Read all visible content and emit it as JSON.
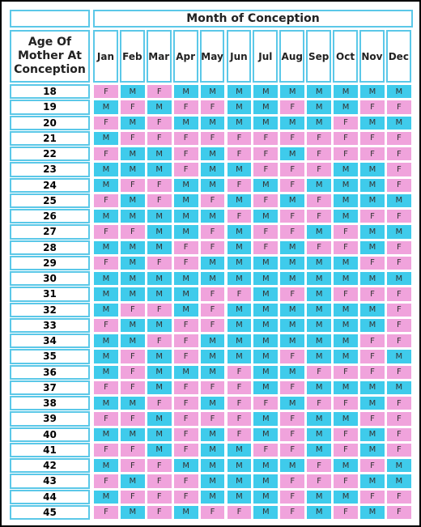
{
  "header": {
    "title": "Month of Conception",
    "age_label": "Age Of Mother At Conception"
  },
  "months": [
    "Jan",
    "Feb",
    "Mar",
    "Apr",
    "May",
    "Jun",
    "Jul",
    "Aug",
    "Sep",
    "Oct",
    "Nov",
    "Dec"
  ],
  "rows": [
    {
      "age": "18",
      "values": [
        "F",
        "M",
        "F",
        "M",
        "M",
        "M",
        "M",
        "M",
        "M",
        "M",
        "M",
        "M"
      ]
    },
    {
      "age": "19",
      "values": [
        "M",
        "F",
        "M",
        "F",
        "F",
        "M",
        "M",
        "F",
        "M",
        "M",
        "F",
        "F"
      ]
    },
    {
      "age": "20",
      "values": [
        "F",
        "M",
        "F",
        "M",
        "M",
        "M",
        "M",
        "M",
        "M",
        "F",
        "M",
        "M"
      ]
    },
    {
      "age": "21",
      "values": [
        "M",
        "F",
        "F",
        "F",
        "F",
        "F",
        "F",
        "F",
        "F",
        "F",
        "F",
        "F"
      ]
    },
    {
      "age": "22",
      "values": [
        "F",
        "M",
        "M",
        "F",
        "M",
        "F",
        "F",
        "M",
        "F",
        "F",
        "F",
        "F"
      ]
    },
    {
      "age": "23",
      "values": [
        "M",
        "M",
        "M",
        "F",
        "M",
        "M",
        "F",
        "F",
        "F",
        "M",
        "M",
        "F"
      ]
    },
    {
      "age": "24",
      "values": [
        "M",
        "F",
        "F",
        "M",
        "M",
        "F",
        "M",
        "F",
        "M",
        "M",
        "M",
        "F"
      ]
    },
    {
      "age": "25",
      "values": [
        "F",
        "M",
        "F",
        "M",
        "F",
        "M",
        "F",
        "M",
        "F",
        "M",
        "M",
        "M"
      ]
    },
    {
      "age": "26",
      "values": [
        "M",
        "M",
        "M",
        "M",
        "M",
        "F",
        "M",
        "F",
        "F",
        "M",
        "F",
        "F"
      ]
    },
    {
      "age": "27",
      "values": [
        "F",
        "F",
        "M",
        "M",
        "F",
        "M",
        "F",
        "F",
        "M",
        "F",
        "M",
        "M"
      ]
    },
    {
      "age": "28",
      "values": [
        "M",
        "M",
        "M",
        "F",
        "F",
        "M",
        "F",
        "M",
        "F",
        "F",
        "M",
        "F"
      ]
    },
    {
      "age": "29",
      "values": [
        "F",
        "M",
        "F",
        "F",
        "M",
        "M",
        "M",
        "M",
        "M",
        "M",
        "F",
        "F"
      ]
    },
    {
      "age": "30",
      "values": [
        "M",
        "M",
        "M",
        "M",
        "M",
        "M",
        "M",
        "M",
        "M",
        "M",
        "M",
        "M"
      ]
    },
    {
      "age": "31",
      "values": [
        "M",
        "M",
        "M",
        "M",
        "F",
        "F",
        "M",
        "F",
        "M",
        "F",
        "F",
        "F"
      ]
    },
    {
      "age": "32",
      "values": [
        "M",
        "F",
        "F",
        "M",
        "F",
        "M",
        "M",
        "M",
        "M",
        "M",
        "M",
        "F"
      ]
    },
    {
      "age": "33",
      "values": [
        "F",
        "M",
        "M",
        "F",
        "F",
        "M",
        "M",
        "M",
        "M",
        "M",
        "M",
        "F"
      ]
    },
    {
      "age": "34",
      "values": [
        "M",
        "M",
        "F",
        "F",
        "M",
        "M",
        "M",
        "M",
        "M",
        "M",
        "F",
        "F"
      ]
    },
    {
      "age": "35",
      "values": [
        "M",
        "F",
        "M",
        "F",
        "M",
        "M",
        "M",
        "F",
        "M",
        "M",
        "F",
        "M"
      ]
    },
    {
      "age": "36",
      "values": [
        "M",
        "F",
        "M",
        "M",
        "M",
        "F",
        "M",
        "M",
        "F",
        "F",
        "F",
        "F"
      ]
    },
    {
      "age": "37",
      "values": [
        "F",
        "F",
        "M",
        "F",
        "F",
        "F",
        "M",
        "F",
        "M",
        "M",
        "M",
        "M"
      ]
    },
    {
      "age": "38",
      "values": [
        "M",
        "M",
        "F",
        "F",
        "M",
        "F",
        "F",
        "M",
        "F",
        "F",
        "M",
        "F"
      ]
    },
    {
      "age": "39",
      "values": [
        "F",
        "F",
        "M",
        "F",
        "F",
        "F",
        "M",
        "F",
        "M",
        "M",
        "F",
        "F"
      ]
    },
    {
      "age": "40",
      "values": [
        "M",
        "M",
        "M",
        "F",
        "M",
        "F",
        "M",
        "F",
        "M",
        "F",
        "M",
        "F"
      ]
    },
    {
      "age": "41",
      "values": [
        "F",
        "F",
        "M",
        "F",
        "M",
        "M",
        "F",
        "F",
        "M",
        "F",
        "M",
        "F"
      ]
    },
    {
      "age": "42",
      "values": [
        "M",
        "F",
        "F",
        "M",
        "M",
        "M",
        "M",
        "M",
        "F",
        "M",
        "F",
        "M"
      ]
    },
    {
      "age": "43",
      "values": [
        "F",
        "M",
        "F",
        "F",
        "M",
        "M",
        "M",
        "F",
        "F",
        "F",
        "M",
        "M"
      ]
    },
    {
      "age": "44",
      "values": [
        "M",
        "F",
        "F",
        "F",
        "M",
        "M",
        "M",
        "F",
        "M",
        "M",
        "F",
        "F"
      ]
    },
    {
      "age": "45",
      "values": [
        "F",
        "M",
        "F",
        "M",
        "F",
        "F",
        "M",
        "F",
        "M",
        "F",
        "M",
        "F"
      ]
    }
  ]
}
